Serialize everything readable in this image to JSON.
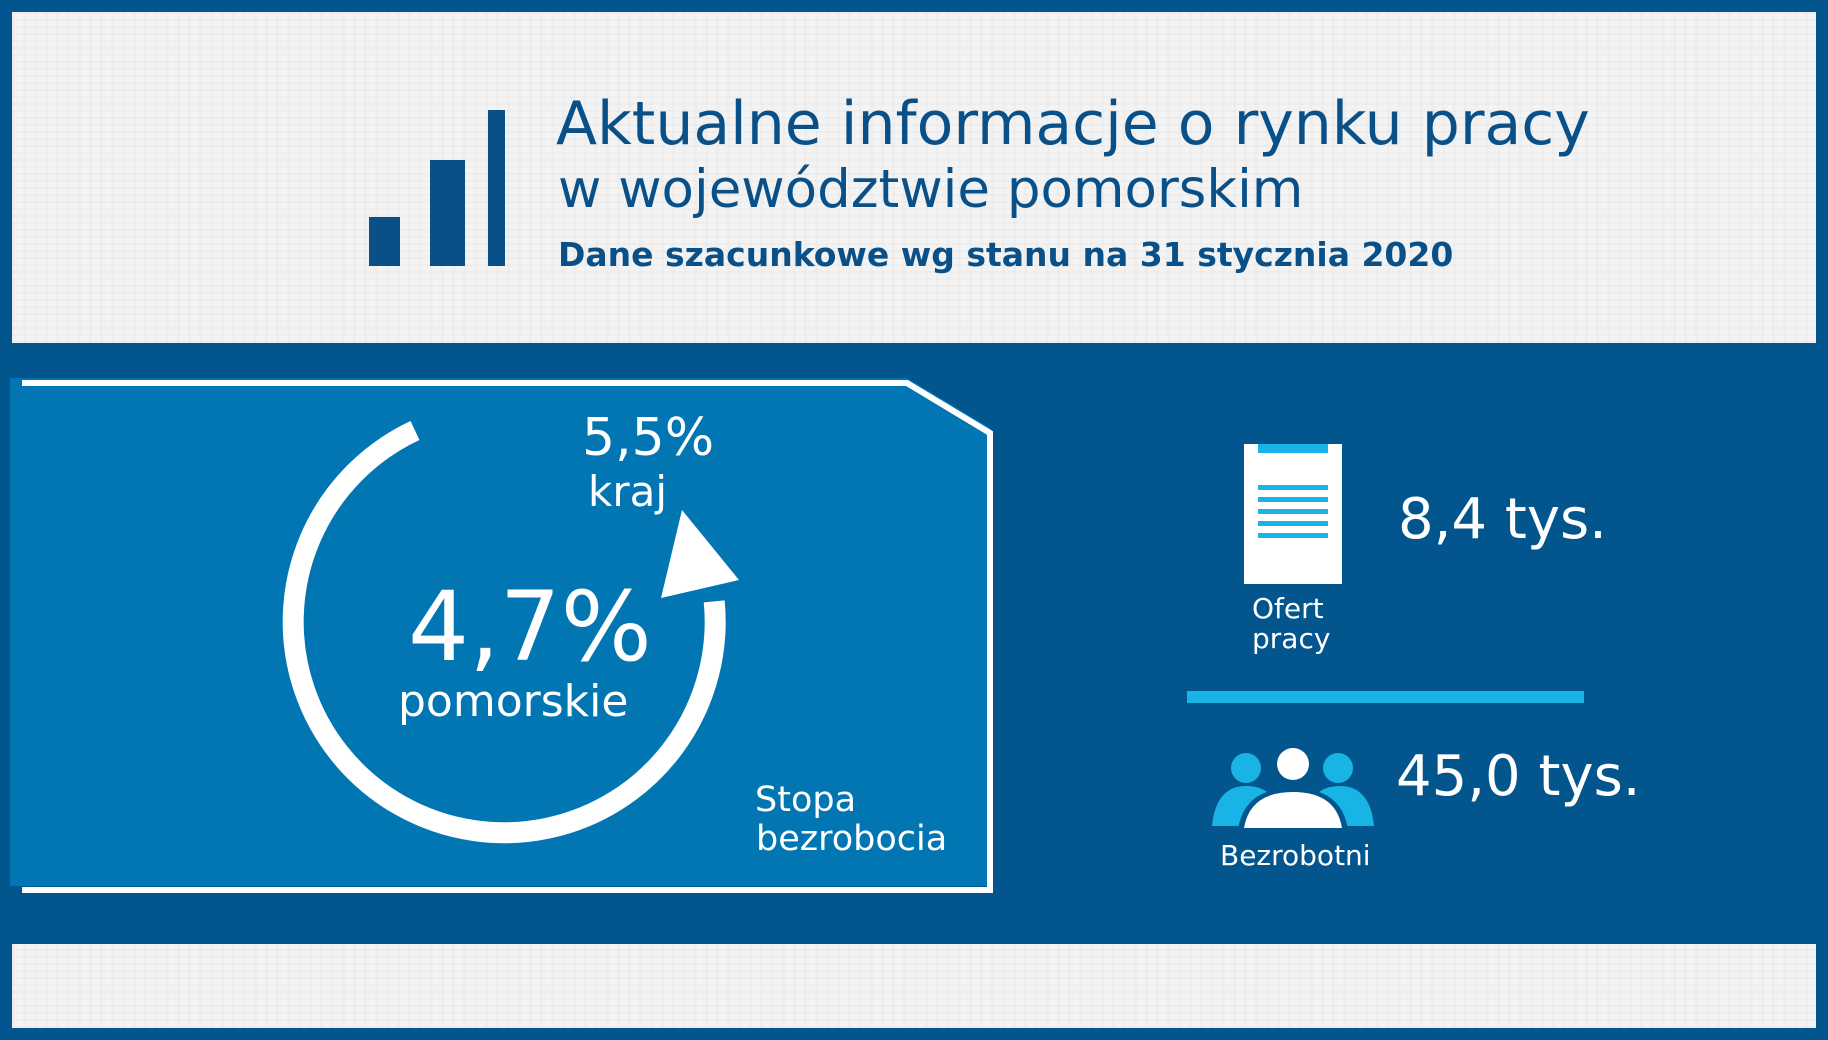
{
  "header": {
    "title": "Aktualne informacje o rynku pracy",
    "subtitle": "w województwie pomorskim",
    "date_note": "Dane szacunkowe wg stanu na 31 stycznia 2020",
    "icon": "bar-chart-icon"
  },
  "unemployment_rate": {
    "national_value": "5,5%",
    "national_label": "kraj",
    "regional_value": "4,7%",
    "regional_label": "pomorskie",
    "caption_line1": "Stopa",
    "caption_line2": "bezrobocia",
    "icon": "circular-arrow-icon"
  },
  "job_offers": {
    "value": "8,4 tys.",
    "label_line1": "Ofert",
    "label_line2": "pracy",
    "icon": "clipboard-icon"
  },
  "unemployed": {
    "value": "45,0 tys.",
    "label": "Bezrobotni",
    "icon": "people-group-icon"
  },
  "colors": {
    "background": "#03558d",
    "box": "#0176b2",
    "header_panel": "#f3f3f3",
    "title_text": "#0a5088",
    "accent": "#19b4e6",
    "white": "#ffffff"
  }
}
